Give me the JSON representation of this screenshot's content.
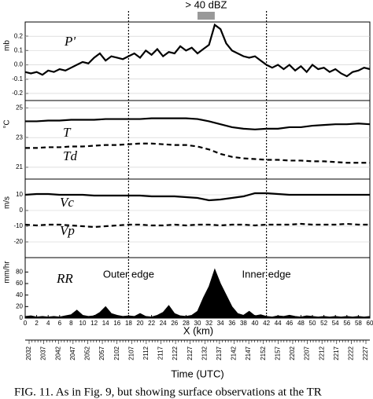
{
  "chart_data": [
    {
      "type": "line",
      "ylabel": "mb",
      "ylim": [
        -0.25,
        0.3
      ],
      "yticks": [
        -0.2,
        -0.1,
        {
          "value": 0,
          "label": "0.0"
        },
        0.1,
        0.2
      ],
      "grid": true,
      "x": [
        0,
        1,
        2,
        3,
        4,
        5,
        6,
        7,
        8,
        9,
        10,
        11,
        12,
        13,
        14,
        15,
        16,
        17,
        18,
        19,
        20,
        21,
        22,
        23,
        24,
        25,
        26,
        27,
        28,
        29,
        30,
        31,
        32,
        33,
        34,
        35,
        36,
        37,
        38,
        39,
        40,
        41,
        42,
        43,
        44,
        45,
        46,
        47,
        48,
        49,
        50,
        51,
        52,
        53,
        54,
        55,
        56,
        57,
        58,
        59,
        60
      ],
      "series": [
        {
          "name": "P'",
          "color": "#000",
          "dash": false,
          "values": [
            -0.05,
            -0.06,
            -0.05,
            -0.07,
            -0.04,
            -0.05,
            -0.03,
            -0.04,
            -0.02,
            0.0,
            0.02,
            0.01,
            0.05,
            0.08,
            0.03,
            0.06,
            0.05,
            0.04,
            0.06,
            0.08,
            0.05,
            0.1,
            0.07,
            0.11,
            0.06,
            0.09,
            0.08,
            0.13,
            0.1,
            0.12,
            0.08,
            0.11,
            0.14,
            0.28,
            0.25,
            0.15,
            0.1,
            0.08,
            0.06,
            0.05,
            0.06,
            0.03,
            0.0,
            -0.02,
            0.0,
            -0.03,
            0.0,
            -0.04,
            -0.01,
            -0.05,
            0.0,
            -0.03,
            -0.02,
            -0.05,
            -0.03,
            -0.06,
            -0.08,
            -0.05,
            -0.04,
            -0.02,
            -0.03
          ]
        }
      ]
    },
    {
      "type": "line",
      "ylabel": "°C",
      "ylim": [
        20.2,
        25.5
      ],
      "yticks": [
        21,
        23,
        25
      ],
      "grid": true,
      "x": [
        0,
        2,
        4,
        6,
        8,
        10,
        12,
        14,
        16,
        18,
        20,
        22,
        24,
        26,
        28,
        30,
        32,
        34,
        36,
        38,
        40,
        42,
        44,
        46,
        48,
        50,
        52,
        54,
        56,
        58,
        60
      ],
      "series": [
        {
          "name": "T",
          "color": "#000",
          "dash": false,
          "values": [
            24.1,
            24.1,
            24.15,
            24.15,
            24.2,
            24.2,
            24.2,
            24.25,
            24.25,
            24.25,
            24.25,
            24.3,
            24.3,
            24.3,
            24.3,
            24.25,
            24.1,
            23.9,
            23.7,
            23.6,
            23.55,
            23.6,
            23.6,
            23.7,
            23.7,
            23.8,
            23.85,
            23.9,
            23.9,
            23.95,
            23.9
          ]
        },
        {
          "name": "Td",
          "color": "#000",
          "dash": true,
          "values": [
            22.3,
            22.3,
            22.35,
            22.35,
            22.4,
            22.4,
            22.45,
            22.5,
            22.5,
            22.55,
            22.6,
            22.6,
            22.55,
            22.5,
            22.5,
            22.4,
            22.2,
            21.9,
            21.7,
            21.6,
            21.55,
            21.5,
            21.5,
            21.45,
            21.45,
            21.4,
            21.4,
            21.35,
            21.3,
            21.3,
            21.3
          ]
        }
      ]
    },
    {
      "type": "line",
      "ylabel": "m/s",
      "ylim": [
        -30,
        20
      ],
      "yticks": [
        -20,
        -10,
        0,
        10
      ],
      "grid": true,
      "x": [
        0,
        2,
        4,
        6,
        8,
        10,
        12,
        14,
        16,
        18,
        20,
        22,
        24,
        26,
        28,
        30,
        32,
        34,
        36,
        38,
        40,
        42,
        44,
        46,
        48,
        50,
        52,
        54,
        56,
        58,
        60
      ],
      "series": [
        {
          "name": "Vc",
          "color": "#000",
          "dash": false,
          "values": [
            10,
            10.5,
            10.5,
            10,
            10,
            10,
            9.5,
            9.5,
            9.5,
            9.5,
            9.5,
            9,
            9,
            9,
            8.5,
            8,
            6.5,
            7,
            8,
            9,
            11,
            11,
            10.5,
            10,
            10,
            10,
            10,
            10,
            10,
            10,
            10
          ]
        },
        {
          "name": "Vp",
          "color": "#000",
          "dash": true,
          "values": [
            -9,
            -9.5,
            -9,
            -9,
            -9.5,
            -10,
            -10.5,
            -10,
            -9.5,
            -9,
            -9,
            -9.5,
            -9.5,
            -9,
            -9.5,
            -9,
            -9,
            -9.5,
            -9,
            -9,
            -9.5,
            -9,
            -9,
            -9,
            -8.5,
            -9,
            -9,
            -9,
            -8.5,
            -9,
            -9
          ]
        }
      ]
    },
    {
      "type": "area",
      "ylabel": "mm/hr",
      "ylim": [
        0,
        105
      ],
      "yticks": [
        0,
        20,
        40,
        60,
        80
      ],
      "grid": false,
      "xlabel": "X (km)",
      "xlim": [
        0,
        60
      ],
      "xticks": [
        0,
        2,
        4,
        6,
        8,
        10,
        12,
        14,
        16,
        18,
        20,
        22,
        24,
        26,
        28,
        30,
        32,
        34,
        36,
        38,
        40,
        42,
        44,
        46,
        48,
        50,
        52,
        54,
        56,
        58,
        60
      ],
      "x": [
        0,
        1,
        2,
        3,
        4,
        5,
        6,
        7,
        8,
        9,
        10,
        11,
        12,
        13,
        14,
        15,
        16,
        17,
        18,
        19,
        20,
        21,
        22,
        23,
        24,
        25,
        26,
        27,
        28,
        29,
        30,
        31,
        32,
        33,
        34,
        35,
        36,
        37,
        38,
        39,
        40,
        41,
        42,
        43,
        44,
        45,
        46,
        47,
        48,
        49,
        50,
        51,
        52,
        53,
        54,
        55,
        56,
        57,
        58,
        59,
        60
      ],
      "series": [
        {
          "name": "RR",
          "color": "#000",
          "values": [
            3,
            4,
            2,
            3,
            2,
            3,
            2,
            4,
            6,
            14,
            5,
            3,
            4,
            10,
            20,
            8,
            5,
            3,
            4,
            3,
            8,
            3,
            2,
            5,
            10,
            22,
            8,
            4,
            3,
            5,
            12,
            35,
            55,
            85,
            60,
            40,
            20,
            8,
            5,
            12,
            4,
            6,
            3,
            2,
            4,
            3,
            5,
            3,
            2,
            4,
            3,
            2,
            3,
            2,
            3,
            2,
            3,
            2,
            3,
            2,
            3
          ]
        }
      ]
    }
  ],
  "annotations": [
    {
      "text": "> 40 dBZ",
      "x": [
        30,
        33
      ]
    },
    {
      "text": "Outer edge",
      "x": 18
    },
    {
      "text": "Inner edge",
      "x": 42
    }
  ],
  "time_axis": {
    "title": "Time (UTC)",
    "labels": [
      "2032",
      "2037",
      "2042",
      "2047",
      "2052",
      "2057",
      "2102",
      "2107",
      "2112",
      "2117",
      "2122",
      "2127",
      "2132",
      "2137",
      "2142",
      "2147",
      "2152",
      "2157",
      "2202",
      "2207",
      "2212",
      "2217",
      "2222",
      "2227"
    ]
  },
  "caption": "FIG. 11. As in Fig. 9, but showing surface observations at the TR"
}
